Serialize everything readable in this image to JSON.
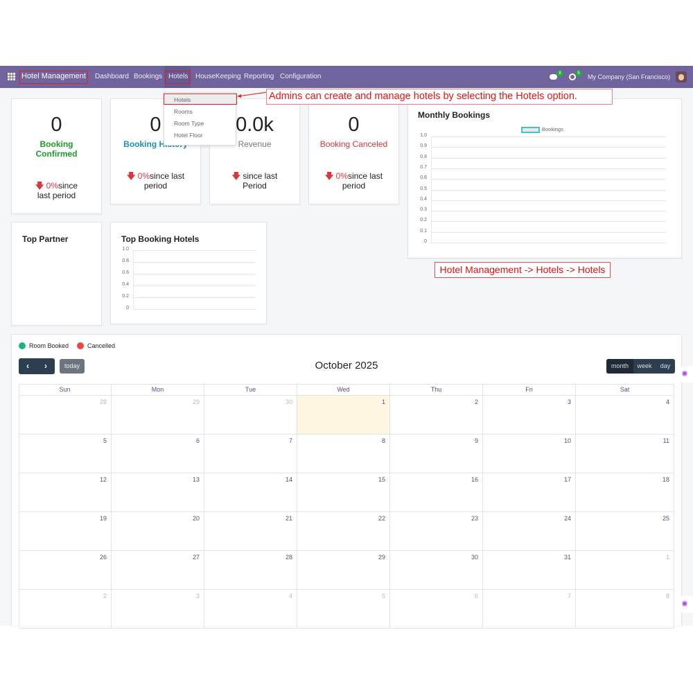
{
  "navbar": {
    "app_name": "Hotel Management",
    "menu": [
      "Dashboard",
      "Bookings",
      "Hotels",
      "HouseKeeping",
      "Reporting",
      "Configuration"
    ],
    "messages_count": "8",
    "activities_count": "5",
    "company": "My Company (San Francisco)",
    "color": "#71639e"
  },
  "dropdown": {
    "items": [
      "Hotels",
      "Rooms",
      "Room Type",
      "Hotel Floor"
    ]
  },
  "annotations": {
    "top": "Admins can create and manage hotels by selecting the Hotels option.",
    "path": "Hotel Management -> Hotels -> Hotels"
  },
  "kpis": [
    {
      "value": "0",
      "label": "Booking Confirmed",
      "pct": "0%",
      "since": "since last period",
      "color": "#1a9a2a"
    },
    {
      "value": "0",
      "label": "Booking History",
      "pct": "0%",
      "since": "since last period",
      "color": "#1d8fb8"
    },
    {
      "value": "0.0k",
      "label": "Revenue",
      "pct": "",
      "since": "since last Period",
      "color": "#777777"
    },
    {
      "value": "0",
      "label": "Booking Canceled",
      "pct": "0%",
      "since": "since last period",
      "color": "#d9363e"
    }
  ],
  "monthly_chart": {
    "title": "Monthly Bookings",
    "legend": "Bookings",
    "ticks": [
      "1.0",
      "0.9",
      "0.8",
      "0.7",
      "0.6",
      "0.5",
      "0.4",
      "0.3",
      "0.2",
      "0.1",
      "0"
    ]
  },
  "top_partner": {
    "title": "Top Partner"
  },
  "top_hotels_chart": {
    "title": "Top Booking Hotels",
    "ticks": [
      "1.0",
      "0.8",
      "0.6",
      "0.4",
      "0.2",
      "0"
    ]
  },
  "calendar": {
    "legend": [
      {
        "label": "Room Booked",
        "color": "#14b87a"
      },
      {
        "label": "Cancelled",
        "color": "#ef4444"
      }
    ],
    "today_label": "today",
    "title": "October 2025",
    "views": [
      "month",
      "week",
      "day"
    ],
    "weekdays": [
      "Sun",
      "Mon",
      "Tue",
      "Wed",
      "Thu",
      "Fri",
      "Sat"
    ],
    "weeks": [
      [
        "28",
        "29",
        "30",
        "1",
        "2",
        "3",
        "4"
      ],
      [
        "5",
        "6",
        "7",
        "8",
        "9",
        "10",
        "11"
      ],
      [
        "12",
        "13",
        "14",
        "15",
        "16",
        "17",
        "18"
      ],
      [
        "19",
        "20",
        "21",
        "22",
        "23",
        "24",
        "25"
      ],
      [
        "26",
        "27",
        "28",
        "29",
        "30",
        "31",
        "1"
      ],
      [
        "2",
        "3",
        "4",
        "5",
        "6",
        "7",
        "8"
      ]
    ]
  }
}
